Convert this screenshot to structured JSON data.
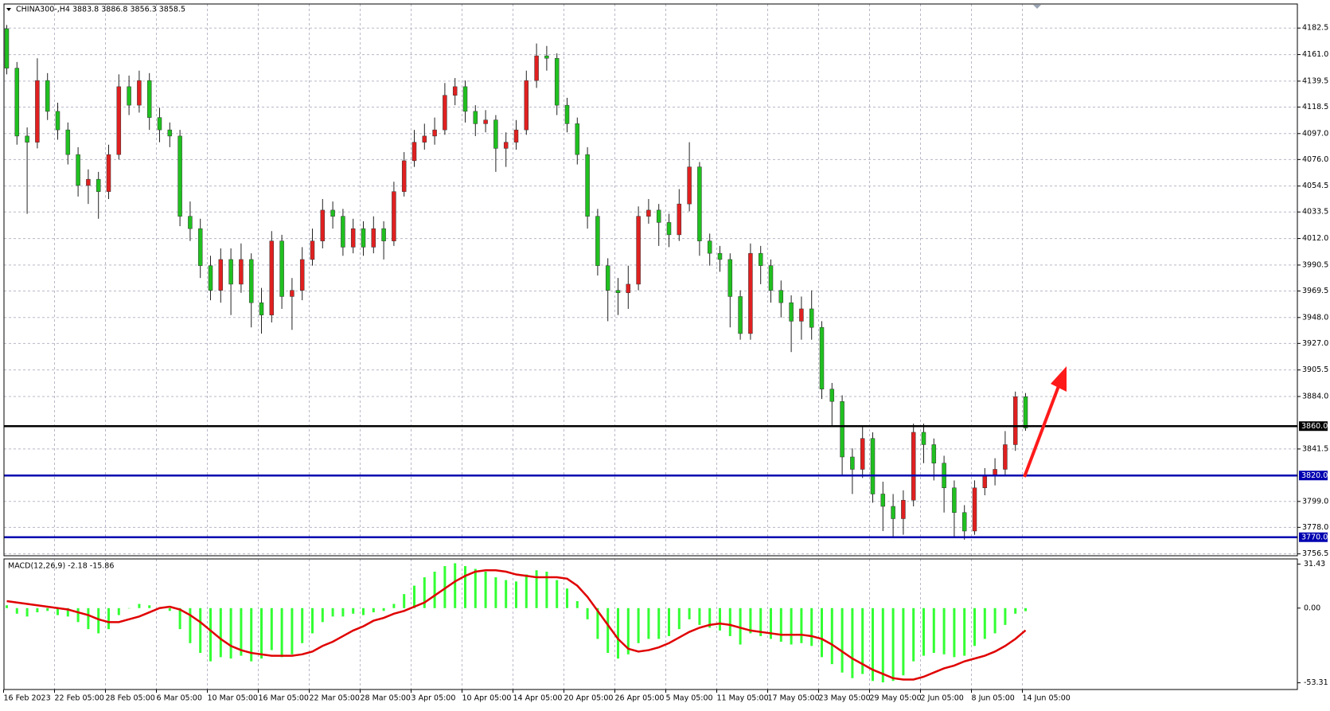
{
  "chart_data": [
    {
      "type": "candlestick",
      "title": "CHINA300-,H4  3883.8 3886.8 3856.3 3858.5",
      "open": [
        4182,
        4150,
        4095,
        4090,
        4140,
        4115,
        4100,
        4080,
        4055,
        4060,
        4050,
        4080,
        4135,
        4120,
        4140,
        4110,
        4100,
        4095,
        4030,
        4020,
        3990,
        3970,
        3995,
        3975,
        3995,
        3960,
        3950,
        4010,
        3965,
        3970,
        3995,
        4010,
        4035,
        4030,
        4005,
        4020,
        4005,
        4020,
        4010,
        4050,
        4075,
        4090,
        4095,
        4100,
        4128,
        4135,
        4115,
        4105,
        4108,
        4085,
        4090,
        4100,
        4140,
        4160,
        4158,
        4120,
        4105,
        4080,
        4030,
        3990,
        3970,
        3968,
        3975,
        4030,
        4035,
        4025,
        4015,
        4040,
        4070,
        4010,
        4000,
        3995,
        3965,
        3935,
        4000,
        3990,
        3970,
        3960,
        3945,
        3955,
        3940,
        3890,
        3880,
        3835,
        3825,
        3850,
        3805,
        3795,
        3785,
        3800,
        3855,
        3845,
        3830,
        3810,
        3790,
        3775,
        3810,
        3820,
        3825,
        3845,
        3883.8
      ],
      "high": [
        4185,
        4155,
        4102,
        4158,
        4146,
        4122,
        4106,
        4086,
        4068,
        4066,
        4088,
        4145,
        4144,
        4148,
        4146,
        4118,
        4106,
        4100,
        4042,
        4028,
        3998,
        4004,
        4004,
        4008,
        4000,
        3972,
        4018,
        4015,
        3980,
        4005,
        4020,
        4044,
        4042,
        4036,
        4028,
        4026,
        4030,
        4026,
        4058,
        4082,
        4100,
        4105,
        4110,
        4138,
        4142,
        4140,
        4120,
        4116,
        4112,
        4098,
        4108,
        4148,
        4170,
        4168,
        4162,
        4126,
        4110,
        4086,
        4036,
        3996,
        3980,
        3990,
        4038,
        4044,
        4040,
        4032,
        4052,
        4090,
        4074,
        4016,
        4006,
        4000,
        3970,
        4008,
        4006,
        3995,
        3978,
        3966,
        3965,
        3970,
        3945,
        3895,
        3885,
        3842,
        3860,
        3855,
        3815,
        3805,
        3808,
        3862,
        3862,
        3850,
        3836,
        3816,
        3796,
        3816,
        3826,
        3834,
        3856,
        3888,
        3886.8
      ],
      "low": [
        4145,
        4088,
        4032,
        4085,
        4108,
        4092,
        4072,
        4046,
        4040,
        4028,
        4044,
        4076,
        4112,
        4114,
        4100,
        4090,
        4086,
        4022,
        4010,
        3980,
        3962,
        3960,
        3950,
        3968,
        3940,
        3935,
        3944,
        3955,
        3938,
        3962,
        3990,
        4004,
        4020,
        3998,
        4000,
        3998,
        4000,
        3995,
        4006,
        4046,
        4070,
        4084,
        4088,
        4096,
        4120,
        4106,
        4095,
        4098,
        4066,
        4070,
        4084,
        4096,
        4134,
        4148,
        4112,
        4098,
        4072,
        4020,
        3982,
        3945,
        3950,
        3955,
        3970,
        4024,
        4006,
        4005,
        4010,
        4034,
        3998,
        3990,
        3985,
        3940,
        3930,
        3930,
        3975,
        3960,
        3948,
        3920,
        3930,
        3930,
        3882,
        3860,
        3820,
        3805,
        3818,
        3798,
        3775,
        3770,
        3772,
        3795,
        3830,
        3816,
        3790,
        3770,
        3768,
        3772,
        3804,
        3812,
        3820,
        3840,
        3856.3
      ],
      "close": [
        4150,
        4095,
        4090,
        4140,
        4115,
        4100,
        4080,
        4055,
        4060,
        4050,
        4080,
        4135,
        4120,
        4140,
        4110,
        4100,
        4095,
        4030,
        4020,
        3990,
        3970,
        3995,
        3975,
        3995,
        3960,
        3950,
        4010,
        3965,
        3970,
        3995,
        4010,
        4035,
        4030,
        4005,
        4020,
        4005,
        4020,
        4010,
        4050,
        4075,
        4090,
        4095,
        4100,
        4128,
        4135,
        4115,
        4105,
        4108,
        4085,
        4090,
        4100,
        4140,
        4160,
        4158,
        4120,
        4105,
        4080,
        4030,
        3990,
        3970,
        3968,
        3975,
        4030,
        4035,
        4025,
        4015,
        4040,
        4070,
        4010,
        4000,
        3995,
        3965,
        3935,
        4000,
        3990,
        3970,
        3960,
        3945,
        3955,
        3940,
        3890,
        3880,
        3835,
        3825,
        3850,
        3805,
        3795,
        3785,
        3800,
        3855,
        3845,
        3830,
        3810,
        3790,
        3775,
        3810,
        3820,
        3825,
        3845,
        3883.8,
        3858.5
      ],
      "up_color": "#e02020",
      "down_color": "#20c020",
      "ylim": [
        3755,
        4202
      ],
      "yticks": [
        4182.5,
        {
          "value": 4161,
          "label": "4161.0"
        },
        4139.5,
        4118.5,
        {
          "value": 4097,
          "label": "4097.0"
        },
        {
          "value": 4076,
          "label": "4076.0"
        },
        4054.5,
        4033.5,
        {
          "value": 4012,
          "label": "4012.0"
        },
        3990.5,
        3969.5,
        {
          "value": 3948,
          "label": "3948.0"
        },
        {
          "value": 3927,
          "label": "3927.0"
        },
        3905.5,
        {
          "value": 3884,
          "label": "3884.0"
        },
        3841.5,
        {
          "value": 3799,
          "label": "3799.0"
        },
        {
          "value": 3778,
          "label": "3778.0"
        },
        3756.5
      ],
      "levels": [
        {
          "value": 3860,
          "label": "3860.0",
          "color": "#000000"
        },
        {
          "value": 3820,
          "label": "3820.0",
          "color": "#0000b0"
        },
        {
          "value": 3770,
          "label": "3770.0",
          "color": "#0000b0"
        }
      ],
      "date_labels": [
        "16 Feb 2023",
        "22 Feb 05:00",
        "28 Feb 05:00",
        "6 Mar 05:00",
        "10 Mar 05:00",
        "16 Mar 05:00",
        "22 Mar 05:00",
        "28 Mar 05:00",
        "3 Apr 05:00",
        "10 Apr 05:00",
        "14 Apr 05:00",
        "20 Apr 05:00",
        "26 Apr 05:00",
        "5 May 05:00",
        "11 May 05:00",
        "17 May 05:00",
        "23 May 05:00",
        "29 May 05:00",
        "2 Jun 05:00",
        "8 Jun 05:00",
        "14 Jun 05:00"
      ],
      "grid": true
    },
    {
      "type": "macd",
      "title": "MACD(12,26,9) -2.18 -15.86",
      "series": [
        {
          "name": "MACD",
          "color": "#33ff33",
          "values": [
            2,
            -4,
            -6,
            -3,
            -2,
            -5,
            -6,
            -10,
            -15,
            -18,
            -15,
            -5,
            0,
            3,
            2,
            0,
            -2,
            -15,
            -25,
            -32,
            -38,
            -35,
            -36,
            -34,
            -38,
            -36,
            -30,
            -35,
            -33,
            -25,
            -18,
            -10,
            -6,
            -6,
            -4,
            -5,
            -3,
            -2,
            3,
            10,
            16,
            22,
            26,
            30,
            32,
            30,
            28,
            26,
            22,
            20,
            19,
            24,
            27,
            26,
            20,
            14,
            5,
            -8,
            -22,
            -32,
            -36,
            -33,
            -25,
            -22,
            -22,
            -20,
            -15,
            -8,
            -12,
            -14,
            -16,
            -20,
            -26,
            -18,
            -20,
            -22,
            -24,
            -26,
            -25,
            -27,
            -35,
            -40,
            -46,
            -50,
            -47,
            -52,
            -53,
            -52,
            -48,
            -38,
            -34,
            -32,
            -33,
            -35,
            -34,
            -27,
            -22,
            -18,
            -12,
            -4,
            -2.18
          ]
        },
        {
          "name": "Signal",
          "color": "#e00000",
          "values": [
            5,
            4,
            3,
            2,
            1,
            0,
            -1,
            -3,
            -5,
            -8,
            -10,
            -10,
            -8,
            -6,
            -3,
            0,
            1,
            -1,
            -5,
            -10,
            -16,
            -22,
            -27,
            -30,
            -32,
            -33,
            -34,
            -34,
            -34,
            -33,
            -31,
            -27,
            -24,
            -20,
            -16,
            -13,
            -9,
            -7,
            -4,
            -2,
            1,
            4,
            9,
            14,
            19,
            23,
            26,
            27,
            27,
            26,
            24,
            23,
            22,
            22,
            22,
            21,
            16,
            8,
            -2,
            -12,
            -22,
            -29,
            -31,
            -30,
            -28,
            -25,
            -21,
            -17,
            -14,
            -12,
            -11,
            -12,
            -14,
            -16,
            -17,
            -18,
            -19,
            -19,
            -19,
            -20,
            -22,
            -26,
            -31,
            -36,
            -40,
            -44,
            -47,
            -50,
            -51,
            -51,
            -49,
            -46,
            -43,
            -41,
            -38,
            -36,
            -34,
            -31,
            -27,
            -22,
            -15.86
          ]
        }
      ],
      "ylim": [
        -58.1,
        35.1
      ],
      "yticks": [
        31.43,
        {
          "value": 0,
          "label": "0.00"
        },
        -53.31
      ],
      "grid": true
    }
  ]
}
